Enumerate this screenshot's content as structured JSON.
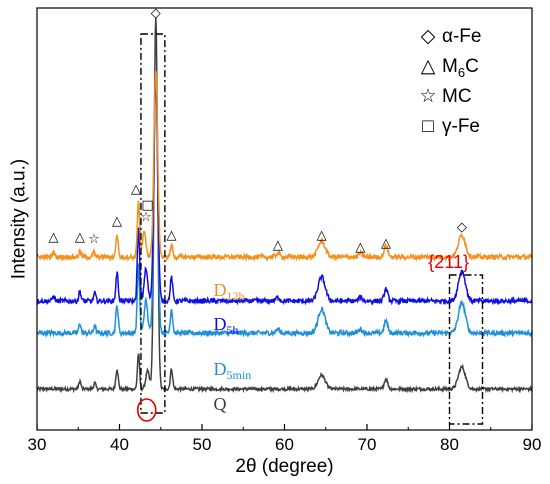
{
  "chart_data": {
    "type": "line",
    "xlabel": "2θ (degree)",
    "ylabel": "Intensity (a.u.)",
    "xlim": [
      30,
      90
    ],
    "xticks": [
      30,
      40,
      50,
      60,
      70,
      80,
      90
    ],
    "grid": false,
    "y_ticks_shown": false,
    "legend": {
      "placement": "top-right",
      "items": [
        {
          "symbol": "◇",
          "text_main": "α-Fe",
          "text_sub": ""
        },
        {
          "symbol": "△",
          "text_main": "M",
          "text_sub": "6",
          "text_tail": "C"
        },
        {
          "symbol": "☆",
          "text_main": "MC",
          "text_sub": ""
        },
        {
          "symbol": "□",
          "text_main": "γ-Fe",
          "text_sub": ""
        }
      ]
    },
    "series": [
      {
        "name_main": "Q",
        "name_sub": "",
        "color": "#404040",
        "baseline": 0.06,
        "noise": 0.004,
        "peaks": [
          [
            35.2,
            0.02,
            0.18
          ],
          [
            37.0,
            0.015,
            0.18
          ],
          [
            39.7,
            0.05,
            0.2
          ],
          [
            42.3,
            0.09,
            0.18
          ],
          [
            43.4,
            0.045,
            0.3
          ],
          [
            44.4,
            0.93,
            0.3
          ],
          [
            46.3,
            0.05,
            0.2
          ],
          [
            64.5,
            0.035,
            0.6
          ],
          [
            72.3,
            0.025,
            0.3
          ],
          [
            81.5,
            0.055,
            0.6
          ]
        ]
      },
      {
        "name_main": "D",
        "name_sub": "5min",
        "color": "#1f8fd8",
        "baseline": 0.2,
        "noise": 0.006,
        "peaks": [
          [
            35.2,
            0.025,
            0.18
          ],
          [
            37.0,
            0.02,
            0.18
          ],
          [
            39.7,
            0.07,
            0.2
          ],
          [
            42.3,
            0.17,
            0.2
          ],
          [
            43.2,
            0.08,
            0.3
          ],
          [
            44.4,
            0.64,
            0.32
          ],
          [
            46.3,
            0.06,
            0.2
          ],
          [
            59.2,
            0.01,
            0.3
          ],
          [
            64.5,
            0.06,
            0.6
          ],
          [
            69.2,
            0.01,
            0.3
          ],
          [
            72.3,
            0.03,
            0.3
          ],
          [
            81.5,
            0.075,
            0.6
          ]
        ]
      },
      {
        "name_main": "D",
        "name_sub": "5h",
        "color": "#1010e0",
        "baseline": 0.28,
        "noise": 0.006,
        "peaks": [
          [
            32.0,
            0.012,
            0.2
          ],
          [
            35.2,
            0.025,
            0.18
          ],
          [
            37.0,
            0.02,
            0.18
          ],
          [
            39.7,
            0.07,
            0.2
          ],
          [
            42.3,
            0.18,
            0.2
          ],
          [
            43.2,
            0.08,
            0.3
          ],
          [
            44.4,
            0.57,
            0.32
          ],
          [
            46.3,
            0.06,
            0.2
          ],
          [
            59.2,
            0.01,
            0.3
          ],
          [
            64.5,
            0.06,
            0.6
          ],
          [
            69.2,
            0.01,
            0.3
          ],
          [
            72.3,
            0.03,
            0.3
          ],
          [
            81.5,
            0.075,
            0.6
          ]
        ]
      },
      {
        "name_main": "D",
        "name_sub": "12h",
        "color": "#f5901e",
        "baseline": 0.39,
        "noise": 0.006,
        "peaks": [
          [
            32.0,
            0.012,
            0.2
          ],
          [
            35.2,
            0.015,
            0.18
          ],
          [
            36.9,
            0.012,
            0.18
          ],
          [
            39.7,
            0.055,
            0.2
          ],
          [
            42.3,
            0.14,
            0.2
          ],
          [
            43.0,
            0.06,
            0.3
          ],
          [
            44.4,
            0.47,
            0.32
          ],
          [
            46.3,
            0.03,
            0.2
          ],
          [
            59.2,
            0.01,
            0.3
          ],
          [
            64.5,
            0.04,
            0.6
          ],
          [
            69.2,
            0.01,
            0.3
          ],
          [
            72.3,
            0.03,
            0.3
          ],
          [
            81.5,
            0.055,
            0.6
          ]
        ]
      }
    ],
    "peak_markers": [
      {
        "x": 32.0,
        "symbol": "△",
        "level": 0.44
      },
      {
        "x": 35.2,
        "symbol": "△",
        "level": 0.44
      },
      {
        "x": 36.9,
        "symbol": "☆",
        "level": 0.435
      },
      {
        "x": 39.7,
        "symbol": "△",
        "level": 0.48
      },
      {
        "x": 42.0,
        "symbol": "△",
        "level": 0.56
      },
      {
        "x": 43.2,
        "symbol": "☆",
        "level": 0.49
      },
      {
        "x": 43.4,
        "symbol": "□",
        "level": 0.52
      },
      {
        "x": 44.4,
        "symbol": "◇",
        "level": 1.0
      },
      {
        "x": 46.3,
        "symbol": "△",
        "level": 0.445
      },
      {
        "x": 59.2,
        "symbol": "△",
        "level": 0.42
      },
      {
        "x": 64.5,
        "symbol": "△",
        "level": 0.445
      },
      {
        "x": 69.2,
        "symbol": "△",
        "level": 0.415
      },
      {
        "x": 72.3,
        "symbol": "△",
        "level": 0.425
      },
      {
        "x": 81.5,
        "symbol": "◇",
        "level": 0.465
      }
    ],
    "highlight_boxes": [
      {
        "x0": 42.6,
        "x1": 45.5
      },
      {
        "x0": 80.0,
        "x1": 84.0
      }
    ],
    "annotation": {
      "text": "{211}",
      "x": 79.9,
      "color": "#e00000"
    },
    "circle_mark": {
      "x": 43.3,
      "color": "#e00000"
    }
  }
}
